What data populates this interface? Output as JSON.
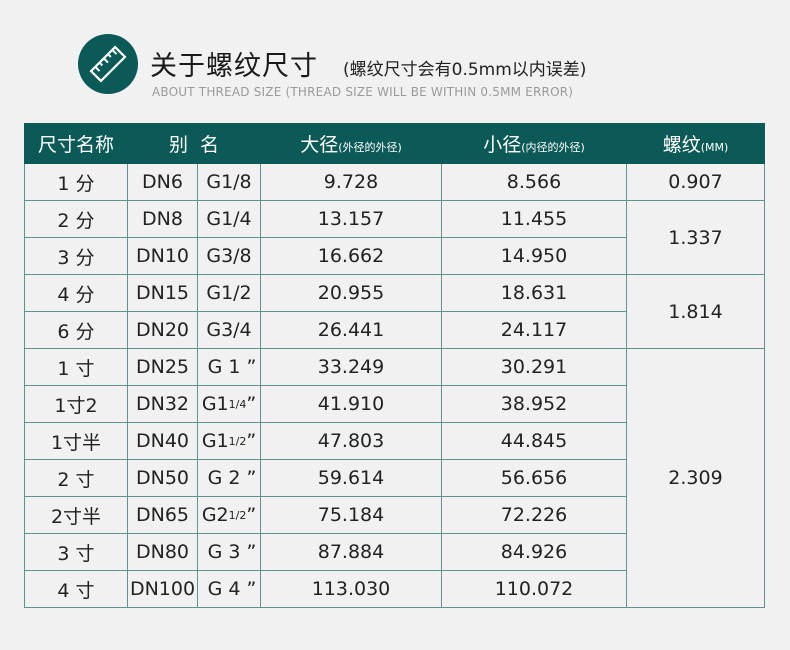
{
  "header": {
    "title": "关于螺纹尺寸",
    "note": "(螺纹尺寸会有0.5mm以内误差)",
    "subtitle": "ABOUT THREAD SIZE (THREAD SIZE WILL BE WITHIN 0.5MM ERROR)",
    "logo_icon": "ruler-icon",
    "accent_color": "#0c5a57"
  },
  "table": {
    "headers": {
      "size_name": "尺寸名称",
      "alias": "别  名",
      "major": "大径",
      "major_note": "(外径的外径)",
      "minor": "小径",
      "minor_note": "(内径的外径)",
      "pitch": "螺纹",
      "pitch_note": "(MM)"
    },
    "rows": [
      {
        "size": "1 分",
        "dn": "DN6",
        "g": "G1/8",
        "major": "9.728",
        "minor": "8.566"
      },
      {
        "size": "2 分",
        "dn": "DN8",
        "g": "G1/4",
        "major": "13.157",
        "minor": "11.455"
      },
      {
        "size": "3 分",
        "dn": "DN10",
        "g": "G3/8",
        "major": "16.662",
        "minor": "14.950"
      },
      {
        "size": "4 分",
        "dn": "DN15",
        "g": "G1/2",
        "major": "20.955",
        "minor": "18.631"
      },
      {
        "size": "6 分",
        "dn": "DN20",
        "g": "G3/4",
        "major": "26.441",
        "minor": "24.117"
      },
      {
        "size": "1 寸",
        "dn": "DN25",
        "g": " G 1 ”",
        "major": "33.249",
        "minor": "30.291"
      },
      {
        "size": "1寸2",
        "dn": "DN32",
        "g": "G1",
        "g_frac": "1/4",
        "g_tail": "”",
        "major": "41.910",
        "minor": "38.952"
      },
      {
        "size": "1寸半",
        "dn": "DN40",
        "g": "G1",
        "g_frac": "1/2",
        "g_tail": "”",
        "major": "47.803",
        "minor": "44.845"
      },
      {
        "size": "2 寸",
        "dn": "DN50",
        "g": " G 2 ”",
        "major": "59.614",
        "minor": "56.656"
      },
      {
        "size": "2寸半",
        "dn": "DN65",
        "g": "G2",
        "g_frac": "1/2",
        "g_tail": "”",
        "major": "75.184",
        "minor": "72.226"
      },
      {
        "size": "3 寸",
        "dn": "DN80",
        "g": " G 3 ”",
        "major": "87.884",
        "minor": "84.926"
      },
      {
        "size": "4 寸",
        "dn": "DN100",
        "g": " G 4 ”",
        "major": "113.030",
        "minor": "110.072"
      }
    ],
    "pitch_groups": [
      {
        "value": "0.907",
        "rows": 1
      },
      {
        "value": "1.337",
        "rows": 2
      },
      {
        "value": "1.814",
        "rows": 2
      },
      {
        "value": "2.309",
        "rows": 7
      }
    ]
  }
}
